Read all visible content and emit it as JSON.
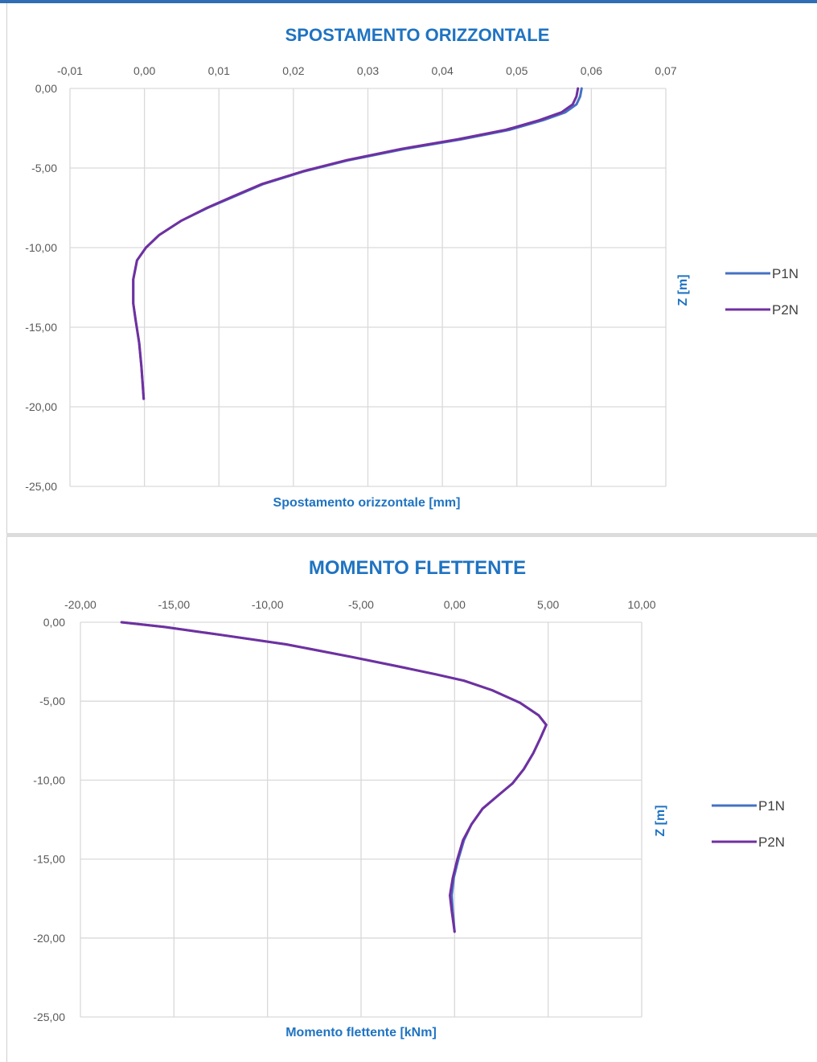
{
  "colors": {
    "P1N": "#4472c4",
    "P2N": "#7030a0",
    "title": "#1f73c2",
    "grid": "#d9d9d9",
    "top_bar": "#2f6db5"
  },
  "chart_data": [
    {
      "type": "line",
      "title": "SPOSTAMENTO ORIZZONTALE",
      "xlabel": "Spostamento orizzontale [mm]",
      "ylabel": "Z [m]",
      "xlim": [
        -0.01,
        0.07
      ],
      "ylim": [
        -25,
        0
      ],
      "x_ticks": [
        "-0,01",
        "0,00",
        "0,01",
        "0,02",
        "0,03",
        "0,04",
        "0,05",
        "0,06",
        "0,07"
      ],
      "y_ticks": [
        "0,00",
        "-5,00",
        "-10,00",
        "-15,00",
        "-20,00",
        "-25,00"
      ],
      "grid": true,
      "legend_position": "right",
      "series": [
        {
          "name": "P1N",
          "color": "#4472c4",
          "points": [
            [
              0.0587,
              0
            ],
            [
              0.0585,
              -0.5
            ],
            [
              0.058,
              -1.0
            ],
            [
              0.0565,
              -1.5
            ],
            [
              0.0535,
              -2.0
            ],
            [
              0.049,
              -2.6
            ],
            [
              0.0425,
              -3.2
            ],
            [
              0.035,
              -3.8
            ],
            [
              0.0275,
              -4.5
            ],
            [
              0.0215,
              -5.2
            ],
            [
              0.016,
              -6.0
            ],
            [
              0.012,
              -6.8
            ],
            [
              0.0085,
              -7.5
            ],
            [
              0.005,
              -8.3
            ],
            [
              0.002,
              -9.2
            ],
            [
              0.0002,
              -10.0
            ],
            [
              -0.001,
              -10.8
            ],
            [
              -0.0015,
              -12.0
            ],
            [
              -0.0015,
              -13.5
            ],
            [
              -0.0012,
              -14.5
            ],
            [
              -0.0007,
              -16.0
            ],
            [
              -0.0004,
              -17.5
            ],
            [
              -0.0001,
              -19.5
            ]
          ]
        },
        {
          "name": "P2N",
          "color": "#7030a0",
          "points": [
            [
              0.0582,
              0
            ],
            [
              0.058,
              -0.5
            ],
            [
              0.0575,
              -1.0
            ],
            [
              0.056,
              -1.5
            ],
            [
              0.053,
              -2.0
            ],
            [
              0.0485,
              -2.6
            ],
            [
              0.042,
              -3.2
            ],
            [
              0.0345,
              -3.8
            ],
            [
              0.0272,
              -4.5
            ],
            [
              0.0213,
              -5.2
            ],
            [
              0.0158,
              -6.0
            ],
            [
              0.0118,
              -6.8
            ],
            [
              0.0084,
              -7.5
            ],
            [
              0.005,
              -8.3
            ],
            [
              0.002,
              -9.2
            ],
            [
              0.0002,
              -10.0
            ],
            [
              -0.001,
              -10.8
            ],
            [
              -0.0015,
              -12.0
            ],
            [
              -0.0015,
              -13.5
            ],
            [
              -0.0012,
              -14.5
            ],
            [
              -0.0007,
              -16.0
            ],
            [
              -0.0004,
              -17.5
            ],
            [
              -0.0001,
              -19.5
            ]
          ]
        }
      ]
    },
    {
      "type": "line",
      "title": "MOMENTO FLETTENTE",
      "xlabel": "Momento flettente [kNm]",
      "ylabel": "Z [m]",
      "xlim": [
        -20,
        10
      ],
      "ylim": [
        -25,
        0
      ],
      "x_ticks": [
        "-20,00",
        "-15,00",
        "-10,00",
        "-5,00",
        "0,00",
        "5,00",
        "10,00"
      ],
      "y_ticks": [
        "0,00",
        "-5,00",
        "-10,00",
        "-15,00",
        "-20,00",
        "-25,00"
      ],
      "grid": true,
      "legend_position": "right",
      "series": [
        {
          "name": "P1N",
          "color": "#4472c4",
          "points": [
            [
              -17.8,
              0
            ],
            [
              -15.5,
              -0.3
            ],
            [
              -12.5,
              -0.8
            ],
            [
              -9.0,
              -1.4
            ],
            [
              -5.5,
              -2.2
            ],
            [
              -3.0,
              -2.8
            ],
            [
              -1.0,
              -3.3
            ],
            [
              0.5,
              -3.7
            ],
            [
              2.0,
              -4.3
            ],
            [
              3.5,
              -5.1
            ],
            [
              4.5,
              -5.9
            ],
            [
              4.9,
              -6.5
            ],
            [
              4.6,
              -7.3
            ],
            [
              4.2,
              -8.3
            ],
            [
              3.7,
              -9.3
            ],
            [
              3.1,
              -10.2
            ],
            [
              2.3,
              -11.0
            ],
            [
              1.5,
              -11.8
            ],
            [
              0.9,
              -12.8
            ],
            [
              0.5,
              -13.8
            ],
            [
              0.2,
              -15.0
            ],
            [
              -0.05,
              -16.2
            ],
            [
              -0.15,
              -17.3
            ],
            [
              -0.1,
              -18.3
            ],
            [
              0.0,
              -19.6
            ]
          ]
        },
        {
          "name": "P2N",
          "color": "#7030a0",
          "points": [
            [
              -17.8,
              0
            ],
            [
              -15.5,
              -0.3
            ],
            [
              -12.5,
              -0.8
            ],
            [
              -9.0,
              -1.4
            ],
            [
              -5.5,
              -2.2
            ],
            [
              -3.0,
              -2.8
            ],
            [
              -1.0,
              -3.3
            ],
            [
              0.5,
              -3.7
            ],
            [
              2.0,
              -4.3
            ],
            [
              3.5,
              -5.1
            ],
            [
              4.5,
              -5.9
            ],
            [
              4.9,
              -6.5
            ],
            [
              4.6,
              -7.3
            ],
            [
              4.2,
              -8.3
            ],
            [
              3.7,
              -9.3
            ],
            [
              3.1,
              -10.2
            ],
            [
              2.3,
              -11.0
            ],
            [
              1.5,
              -11.8
            ],
            [
              0.9,
              -12.8
            ],
            [
              0.45,
              -13.8
            ],
            [
              0.15,
              -15.0
            ],
            [
              -0.1,
              -16.2
            ],
            [
              -0.25,
              -17.3
            ],
            [
              -0.15,
              -18.3
            ],
            [
              0.0,
              -19.6
            ]
          ]
        }
      ]
    }
  ]
}
